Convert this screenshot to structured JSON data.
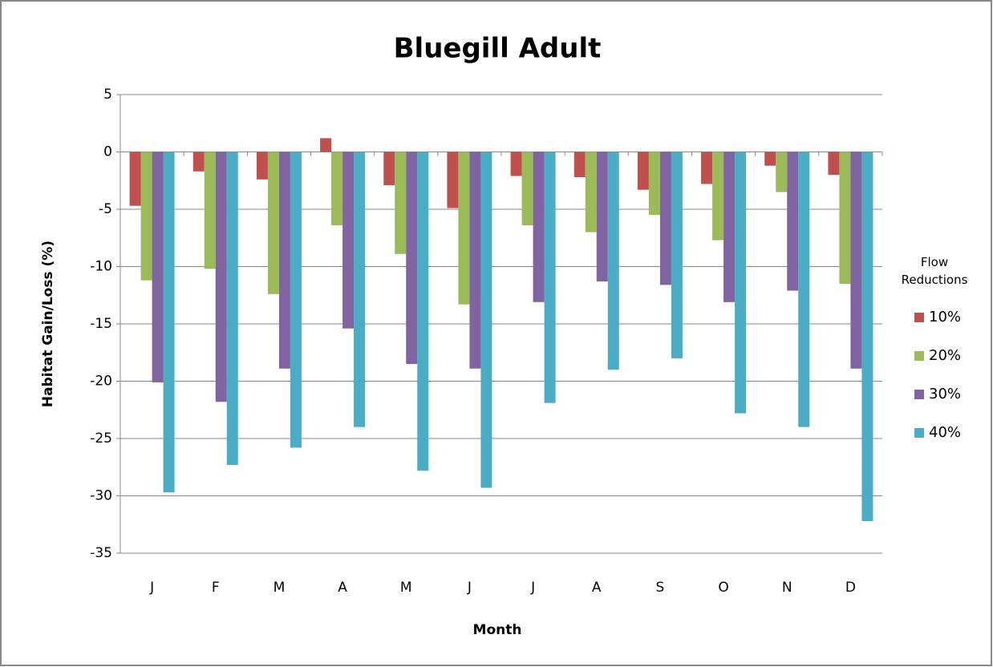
{
  "chart_data": {
    "type": "bar",
    "title": "Bluegill Adult",
    "x_label": "Month",
    "y_label": "Habitat Gain/Loss (%)",
    "categories": [
      "J",
      "F",
      "M",
      "A",
      "M",
      "J",
      "J",
      "A",
      "S",
      "O",
      "N",
      "D"
    ],
    "legend_title": "Flow Reductions",
    "series": [
      {
        "name": "10%",
        "color": "#c0504d",
        "values": [
          -4.7,
          -1.7,
          -2.4,
          1.2,
          -2.9,
          -4.9,
          -2.1,
          -2.2,
          -3.3,
          -2.8,
          -1.2,
          -2.0
        ]
      },
      {
        "name": "20%",
        "color": "#9bbb59",
        "values": [
          -11.2,
          -10.2,
          -12.4,
          -6.4,
          -8.9,
          -13.3,
          -6.4,
          -7.0,
          -5.5,
          -7.7,
          -3.5,
          -11.5
        ]
      },
      {
        "name": "30%",
        "color": "#8064a2",
        "values": [
          -20.1,
          -21.8,
          -18.9,
          -15.4,
          -18.5,
          -18.9,
          -13.1,
          -11.3,
          -11.6,
          -13.1,
          -12.1,
          -18.9
        ]
      },
      {
        "name": "40%",
        "color": "#4bacc6",
        "values": [
          -29.7,
          -27.3,
          -25.8,
          -24.0,
          -27.8,
          -29.3,
          -21.9,
          -19.0,
          -18.0,
          -22.8,
          -24.0,
          -32.2
        ]
      }
    ],
    "ylim": [
      -35,
      5
    ],
    "yticks": [
      5,
      0,
      -5,
      -10,
      -15,
      -20,
      -25,
      -30,
      -35
    ],
    "grid": true,
    "legend": "right"
  }
}
